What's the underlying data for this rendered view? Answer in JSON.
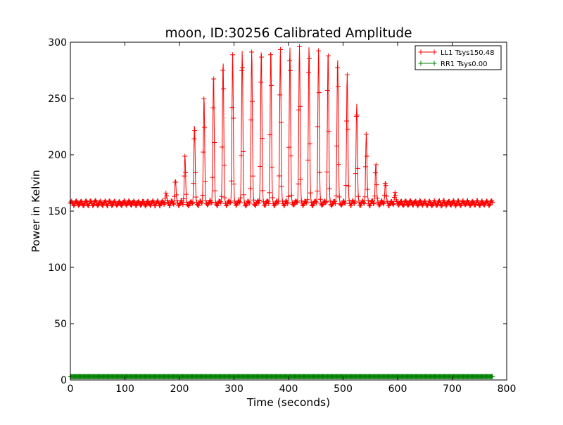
{
  "chart_data": {
    "type": "line",
    "title": "moon, ID:30256 Calibrated Amplitude",
    "xlabel": "Time (seconds)",
    "ylabel": "Power in Kelvin",
    "xlim": [
      0,
      800
    ],
    "ylim": [
      0,
      300
    ],
    "xticks": [
      "0",
      "100",
      "200",
      "300",
      "400",
      "500",
      "600",
      "700",
      "800"
    ],
    "yticks": [
      "0",
      "50",
      "100",
      "150",
      "200",
      "250",
      "300"
    ],
    "grid": false,
    "legend_position": "top-right",
    "series": [
      {
        "name": "LL1 Tsys150.48",
        "color": "#ff0000",
        "marker": "plus",
        "x_range": [
          0,
          775
        ],
        "baseline": 157,
        "baseline_noise": 2,
        "oscillation_period": 17.5,
        "peaks": [
          {
            "x": 175,
            "y": 166
          },
          {
            "x": 192.5,
            "y": 178
          },
          {
            "x": 210,
            "y": 199
          },
          {
            "x": 227.5,
            "y": 226
          },
          {
            "x": 245,
            "y": 251
          },
          {
            "x": 262.5,
            "y": 271
          },
          {
            "x": 280,
            "y": 283
          },
          {
            "x": 297.5,
            "y": 289
          },
          {
            "x": 315,
            "y": 292
          },
          {
            "x": 332.5,
            "y": 292
          },
          {
            "x": 350,
            "y": 293
          },
          {
            "x": 367.5,
            "y": 294
          },
          {
            "x": 385,
            "y": 295
          },
          {
            "x": 402.5,
            "y": 296
          },
          {
            "x": 420,
            "y": 296
          },
          {
            "x": 437.5,
            "y": 296
          },
          {
            "x": 455,
            "y": 294
          },
          {
            "x": 472.5,
            "y": 292
          },
          {
            "x": 490,
            "y": 285
          },
          {
            "x": 507.5,
            "y": 271
          },
          {
            "x": 525,
            "y": 245
          },
          {
            "x": 542.5,
            "y": 219
          },
          {
            "x": 560,
            "y": 192
          },
          {
            "x": 577.5,
            "y": 176
          },
          {
            "x": 595,
            "y": 166
          }
        ]
      },
      {
        "name": "RR1 Tsys0.00",
        "color": "#008000",
        "marker": "plus",
        "x_range": [
          0,
          775
        ],
        "value": 3
      }
    ]
  }
}
